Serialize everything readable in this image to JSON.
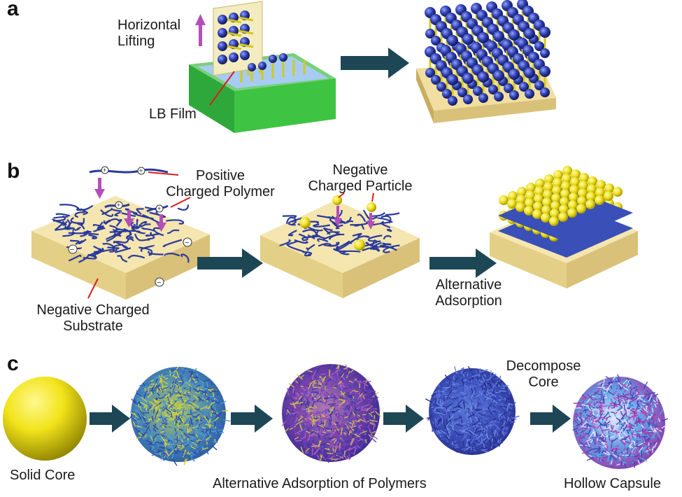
{
  "panels": {
    "a": {
      "letter": "a",
      "labels": {
        "lifting": "Horizontal\nLifting",
        "film": "LB Film"
      }
    },
    "b": {
      "letter": "b",
      "labels": {
        "polymer": "Positive\nCharged Polymer",
        "particle": "Negative\nCharged Particle",
        "substrate": "Negative Charged\nSubstrate",
        "adsorption": "Alternative\nAdsorption"
      },
      "charge_signs": {
        "positive": "+",
        "negative": "−"
      }
    },
    "c": {
      "letter": "c",
      "labels": {
        "core": "Solid Core",
        "polymers": "Alternative Adsorption of Polymers",
        "decompose": "Decompose\nCore",
        "capsule": "Hollow Capsule"
      }
    }
  },
  "colors": {
    "arrow": "#1d4755",
    "pointer": "#d81e1e",
    "lift_arrow": "#b44fb8",
    "substrate": "#f0dfa0",
    "substrate_side": "#d9c17a",
    "trough_green": "#3ec442",
    "water": "#9dc8f0",
    "sphere_blue": "#2f3fb0",
    "sphere_yellow": "#f0e020",
    "stick": "#d4c81a",
    "polymer_blue": "#2a3a9c"
  },
  "icons": [
    "process-arrow-icon",
    "lift-arrow-icon",
    "pointer-arrow-icon"
  ]
}
